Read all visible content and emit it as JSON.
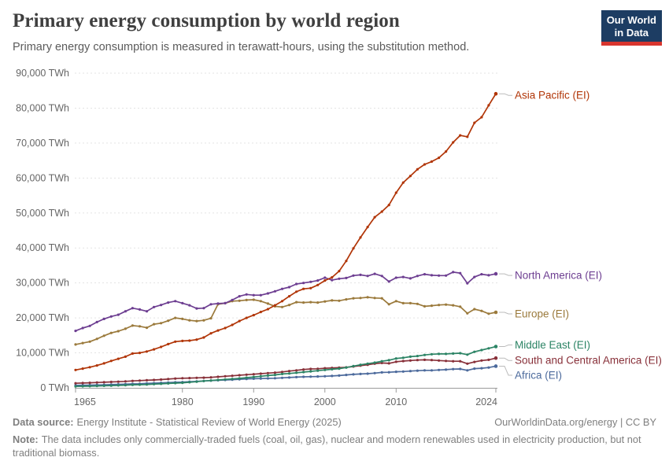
{
  "header": {
    "title": "Primary energy consumption by world region",
    "subtitle": "Primary energy consumption is measured in terawatt-hours, using the substitution method.",
    "logo": {
      "line1": "Our World",
      "line2": "in Data",
      "bg_color": "#1d3d63",
      "accent_color": "#d8352e"
    }
  },
  "footer": {
    "datasource_label": "Data source:",
    "datasource_text": "Energy Institute - Statistical Review of World Energy (2025)",
    "link_text": "OurWorldinData.org/energy | CC BY",
    "note_label": "Note:",
    "note_text": "The data includes only commercially-traded fuels (coal, oil, gas), nuclear and modern renewables used in electricity production, but not traditional biomass."
  },
  "chart_data": {
    "type": "line",
    "title": "Primary energy consumption by world region",
    "unit": "TWh",
    "xlim": [
      1965,
      2024
    ],
    "ylim": [
      0,
      90000
    ],
    "grid": "horizontal-dashed",
    "legend_position": "right-end-labels",
    "x_ticks": [
      1965,
      1980,
      1990,
      2000,
      2010,
      2024
    ],
    "y_ticks": [
      0,
      10000,
      20000,
      30000,
      40000,
      50000,
      60000,
      70000,
      80000,
      90000
    ],
    "years": [
      1965,
      1966,
      1967,
      1968,
      1969,
      1970,
      1971,
      1972,
      1973,
      1974,
      1975,
      1976,
      1977,
      1978,
      1979,
      1980,
      1981,
      1982,
      1983,
      1984,
      1985,
      1986,
      1987,
      1988,
      1989,
      1990,
      1991,
      1992,
      1993,
      1994,
      1995,
      1996,
      1997,
      1998,
      1999,
      2000,
      2001,
      2002,
      2003,
      2004,
      2005,
      2006,
      2007,
      2008,
      2009,
      2010,
      2011,
      2012,
      2013,
      2014,
      2015,
      2016,
      2017,
      2018,
      2019,
      2020,
      2021,
      2022,
      2023,
      2024
    ],
    "series": [
      {
        "name": "Africa (EI)",
        "color": "#4c6a9c",
        "label_dy": 11.5,
        "values": [
          700,
          740,
          770,
          810,
          860,
          930,
          990,
          1050,
          1120,
          1180,
          1250,
          1330,
          1420,
          1500,
          1580,
          1650,
          1750,
          1850,
          1950,
          2060,
          2150,
          2250,
          2350,
          2450,
          2550,
          2600,
          2650,
          2700,
          2750,
          2850,
          2950,
          3050,
          3150,
          3200,
          3250,
          3300,
          3400,
          3500,
          3700,
          3850,
          3950,
          4050,
          4200,
          4400,
          4450,
          4600,
          4650,
          4800,
          4900,
          5000,
          5000,
          5100,
          5200,
          5350,
          5400,
          5000,
          5500,
          5600,
          5800,
          6200
        ]
      },
      {
        "name": "South and Central America (EI)",
        "color": "#883039",
        "label_dy": 3,
        "values": [
          1300,
          1380,
          1450,
          1530,
          1600,
          1680,
          1760,
          1850,
          1980,
          2060,
          2150,
          2260,
          2360,
          2500,
          2650,
          2750,
          2800,
          2850,
          2900,
          3000,
          3150,
          3300,
          3450,
          3600,
          3750,
          3900,
          4050,
          4200,
          4350,
          4550,
          4800,
          5000,
          5250,
          5400,
          5450,
          5600,
          5700,
          5750,
          5850,
          6100,
          6350,
          6600,
          6900,
          7100,
          7000,
          7450,
          7650,
          7800,
          7950,
          8000,
          7950,
          7800,
          7700,
          7600,
          7600,
          6900,
          7400,
          7800,
          8000,
          8500
        ]
      },
      {
        "name": "Middle East (EI)",
        "color": "#2c8465",
        "label_dy": -2,
        "values": [
          400,
          440,
          480,
          530,
          580,
          640,
          700,
          770,
          850,
          900,
          950,
          1050,
          1150,
          1250,
          1350,
          1450,
          1600,
          1750,
          1950,
          2100,
          2250,
          2400,
          2550,
          2700,
          2900,
          3100,
          3300,
          3500,
          3700,
          3950,
          4100,
          4300,
          4500,
          4700,
          4900,
          5100,
          5300,
          5500,
          5800,
          6200,
          6600,
          6900,
          7200,
          7600,
          7900,
          8400,
          8600,
          8900,
          9100,
          9400,
          9600,
          9700,
          9700,
          9800,
          9900,
          9500,
          10300,
          10800,
          11300,
          11800
        ]
      },
      {
        "name": "Europe (EI)",
        "color": "#9b7a3c",
        "label_dy": 2,
        "values": [
          12400,
          12800,
          13200,
          14000,
          14900,
          15700,
          16200,
          16900,
          17800,
          17600,
          17200,
          18200,
          18500,
          19200,
          20000,
          19700,
          19300,
          19100,
          19300,
          19900,
          23900,
          24200,
          24800,
          24900,
          25100,
          25200,
          24800,
          24100,
          23300,
          23100,
          23700,
          24500,
          24400,
          24500,
          24400,
          24700,
          25000,
          24900,
          25300,
          25600,
          25700,
          25900,
          25700,
          25600,
          23900,
          24800,
          24200,
          24200,
          24000,
          23300,
          23500,
          23700,
          23800,
          23600,
          23200,
          21300,
          22500,
          22000,
          21200,
          21600
        ]
      },
      {
        "name": "North America (EI)",
        "color": "#6d3e91",
        "label_dy": 2,
        "values": [
          16300,
          17100,
          17700,
          18800,
          19700,
          20400,
          20900,
          21900,
          22800,
          22400,
          21900,
          23100,
          23700,
          24400,
          24800,
          24200,
          23600,
          22700,
          22800,
          23900,
          24100,
          24200,
          25100,
          26200,
          26700,
          26500,
          26500,
          27000,
          27600,
          28300,
          28800,
          29700,
          30000,
          30300,
          30700,
          31500,
          30800,
          31200,
          31400,
          32100,
          32300,
          32000,
          32600,
          32000,
          30400,
          31500,
          31700,
          31300,
          32000,
          32500,
          32200,
          32100,
          32100,
          33100,
          32800,
          29900,
          31700,
          32500,
          32200,
          32600
        ]
      },
      {
        "name": "Asia Pacific (EI)",
        "color": "#b13507",
        "label_dy": 2,
        "values": [
          5100,
          5500,
          5900,
          6400,
          7000,
          7700,
          8300,
          8900,
          9800,
          10000,
          10400,
          11000,
          11700,
          12500,
          13200,
          13400,
          13500,
          13800,
          14400,
          15600,
          16400,
          17100,
          18000,
          19100,
          20000,
          20800,
          21700,
          22500,
          23600,
          24800,
          26200,
          27500,
          28300,
          28500,
          29400,
          30700,
          31600,
          33400,
          36300,
          39900,
          43000,
          46000,
          48800,
          50400,
          52300,
          55800,
          58700,
          60600,
          62500,
          63900,
          64700,
          65800,
          67600,
          70200,
          72200,
          71800,
          75800,
          77400,
          80800,
          84100
        ]
      }
    ]
  }
}
